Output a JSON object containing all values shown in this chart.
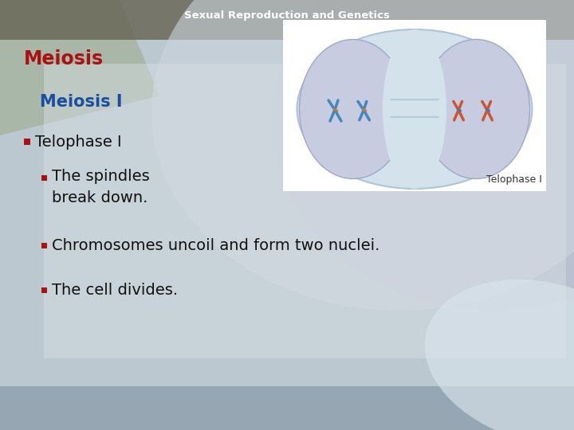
{
  "title": "Sexual Reproduction and Genetics",
  "heading": "Meiosis",
  "subheading": "Meiosis I",
  "bullet1_text": "Telophase I",
  "bullet2a_text": "The spindles\nbreak down.",
  "bullet2b_text": "Chromosomes uncoil and form two nuclei.",
  "bullet2c_text": "The cell divides.",
  "image_caption": "Telophase I",
  "title_color": "#ffffff",
  "heading_color": "#aa1111",
  "subheading_color": "#1a4fa0",
  "bullet1_color": "#111111",
  "bullet_text_color": "#111111",
  "bullet_square_color": "#aa1111",
  "title_fontsize": 9.5,
  "heading_fontsize": 17,
  "subheading_fontsize": 15,
  "bullet1_fontsize": 14,
  "bullet2_fontsize": 14,
  "caption_fontsize": 9
}
